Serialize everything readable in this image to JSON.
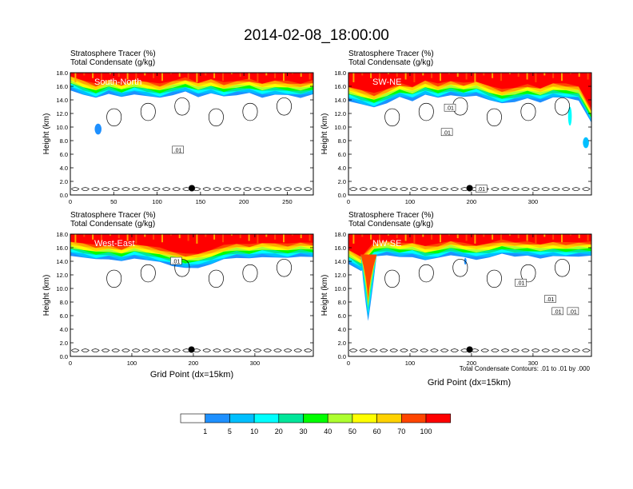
{
  "title": "2014-02-08_18:00:00",
  "colors": {
    "frame": "#000000",
    "contour": "#000000",
    "background": "#ffffff",
    "panel_label_text": "#ffffff"
  },
  "colorbar": {
    "levels": [
      "1",
      "5",
      "10",
      "20",
      "30",
      "40",
      "50",
      "60",
      "70",
      "100"
    ],
    "colors": [
      "#ffffff",
      "#1e90ff",
      "#00bfff",
      "#00ffff",
      "#00e69a",
      "#00ff00",
      "#adff2f",
      "#ffff00",
      "#ffd200",
      "#ffa500",
      "#ff4500",
      "#ff0000"
    ]
  },
  "chart_data": [
    {
      "type": "contour",
      "label": "South-North",
      "title_line1": "Stratosphere Tracer   (%)",
      "title_line2": "Total Condensate   (g/kg)",
      "ylabel": "Height (km)",
      "xlabel": "",
      "xlim": [
        0,
        280
      ],
      "ylim": [
        0,
        18
      ],
      "xticks": [
        "0",
        "50",
        "100",
        "150",
        "200",
        "250"
      ],
      "xtick_values": [
        0,
        50,
        100,
        150,
        200,
        250
      ],
      "yticks": [
        "0.0",
        "2.0",
        "4.0",
        "6.0",
        "8.0",
        "10.0",
        "12.0",
        "14.0",
        "16.0",
        "18.0"
      ],
      "marker": {
        "x": 140,
        "y": 1.0
      },
      "contour_labels": [
        {
          "x": 124,
          "y": 6.6,
          "text": ".01"
        }
      ],
      "tracer_base_km": [
        15.4,
        14.6,
        14.0,
        14.8,
        14.2,
        14.8,
        14.4,
        14.0,
        14.6,
        15.0,
        14.4,
        14.8,
        14.2,
        14.6,
        14.8,
        14.3,
        14.6,
        14.4,
        14.2,
        14.6
      ],
      "extra_blobs": [
        {
          "x": 32,
          "y": 9.7,
          "rx": 4,
          "ry": 0.8,
          "level": 1
        }
      ]
    },
    {
      "type": "contour",
      "label": "SW-NE",
      "title_line1": "Stratosphere Tracer   (%)",
      "title_line2": "Total Condensate   (g/kg)",
      "ylabel": "Height (km)",
      "xlabel": "",
      "xlim": [
        0,
        395
      ],
      "ylim": [
        0,
        18
      ],
      "xticks": [
        "0",
        "100",
        "200",
        "300"
      ],
      "xtick_values": [
        0,
        100,
        200,
        300
      ],
      "yticks": [
        "0.0",
        "2.0",
        "4.0",
        "6.0",
        "8.0",
        "10.0",
        "12.0",
        "14.0",
        "16.0",
        "18.0"
      ],
      "marker": {
        "x": 197,
        "y": 1.0
      },
      "contour_labels": [
        {
          "x": 165,
          "y": 12.8,
          "text": ".01"
        },
        {
          "x": 160,
          "y": 9.2,
          "text": ".01"
        },
        {
          "x": 216,
          "y": 0.9,
          "text": ".01"
        }
      ],
      "tracer_base_km": [
        13.8,
        13.2,
        12.6,
        13.4,
        14.2,
        13.8,
        14.6,
        14.0,
        14.6,
        14.2,
        14.6,
        13.8,
        13.2,
        13.6,
        14.0,
        13.6,
        14.2,
        14.0,
        13.8,
        10.4
      ],
      "extra_blobs": [
        {
          "x": 386,
          "y": 7.7,
          "rx": 5,
          "ry": 0.8,
          "level": 2
        },
        {
          "x": 360,
          "y": 11.6,
          "rx": 3,
          "ry": 1.4,
          "level": 3
        }
      ]
    },
    {
      "type": "contour",
      "label": "West-East",
      "title_line1": "Stratosphere Tracer   (%)",
      "title_line2": "Total Condensate   (g/kg)",
      "ylabel": "Height (km)",
      "xlabel": "Grid Point (dx=15km)",
      "xlim": [
        0,
        395
      ],
      "ylim": [
        0,
        18
      ],
      "xticks": [
        "0",
        "100",
        "200",
        "300"
      ],
      "xtick_values": [
        0,
        100,
        200,
        300
      ],
      "yticks": [
        "0.0",
        "2.0",
        "4.0",
        "6.0",
        "8.0",
        "10.0",
        "12.0",
        "14.0",
        "16.0",
        "18.0"
      ],
      "marker": {
        "x": 197,
        "y": 1.0
      },
      "contour_labels": [
        {
          "x": 172,
          "y": 14.0,
          "text": ".01"
        }
      ],
      "tracer_base_km": [
        14.8,
        14.4,
        14.0,
        14.2,
        13.8,
        14.4,
        14.0,
        13.6,
        13.2,
        12.8,
        13.0,
        13.4,
        14.0,
        14.4,
        14.2,
        14.6,
        14.4,
        14.2,
        14.6,
        14.4
      ],
      "extra_blobs": []
    },
    {
      "type": "contour",
      "label": "NW-SE",
      "title_line1": "Stratosphere Tracer   (%)",
      "title_line2": "Total Condensate   (g/kg)",
      "ylabel": "Height (km)",
      "xlabel": "Grid Point (dx=15km)",
      "footnote": "Total Condensate Contours: .01 to .01 by .000",
      "xlim": [
        0,
        395
      ],
      "ylim": [
        0,
        18
      ],
      "xticks": [
        "0",
        "100",
        "200",
        "300"
      ],
      "xtick_values": [
        0,
        100,
        200,
        300
      ],
      "yticks": [
        "0.0",
        "2.0",
        "4.0",
        "6.0",
        "8.0",
        "10.0",
        "12.0",
        "14.0",
        "16.0",
        "18.0"
      ],
      "marker": {
        "x": 197,
        "y": 1.0
      },
      "contour_labels": [
        {
          "x": 280,
          "y": 10.8,
          "text": ".01"
        },
        {
          "x": 328,
          "y": 8.4,
          "text": ".01"
        },
        {
          "x": 340,
          "y": 6.6,
          "text": ".01"
        },
        {
          "x": 365,
          "y": 6.6,
          "text": ".01"
        }
      ],
      "tracer_base_km": [
        13.6,
        12.4,
        14.4,
        14.8,
        14.4,
        14.6,
        14.0,
        14.2,
        14.8,
        14.4,
        14.2,
        14.4,
        14.8,
        14.6,
        14.6,
        14.4,
        14.6,
        14.4,
        14.6,
        14.6
      ],
      "extra_blobs": [
        {
          "x": 190,
          "y": 14.0,
          "rx": 2,
          "ry": 0.5,
          "level": 1
        }
      ],
      "intrusion": {
        "x": 32,
        "top": 15.0,
        "bottom": 5.2
      }
    }
  ]
}
